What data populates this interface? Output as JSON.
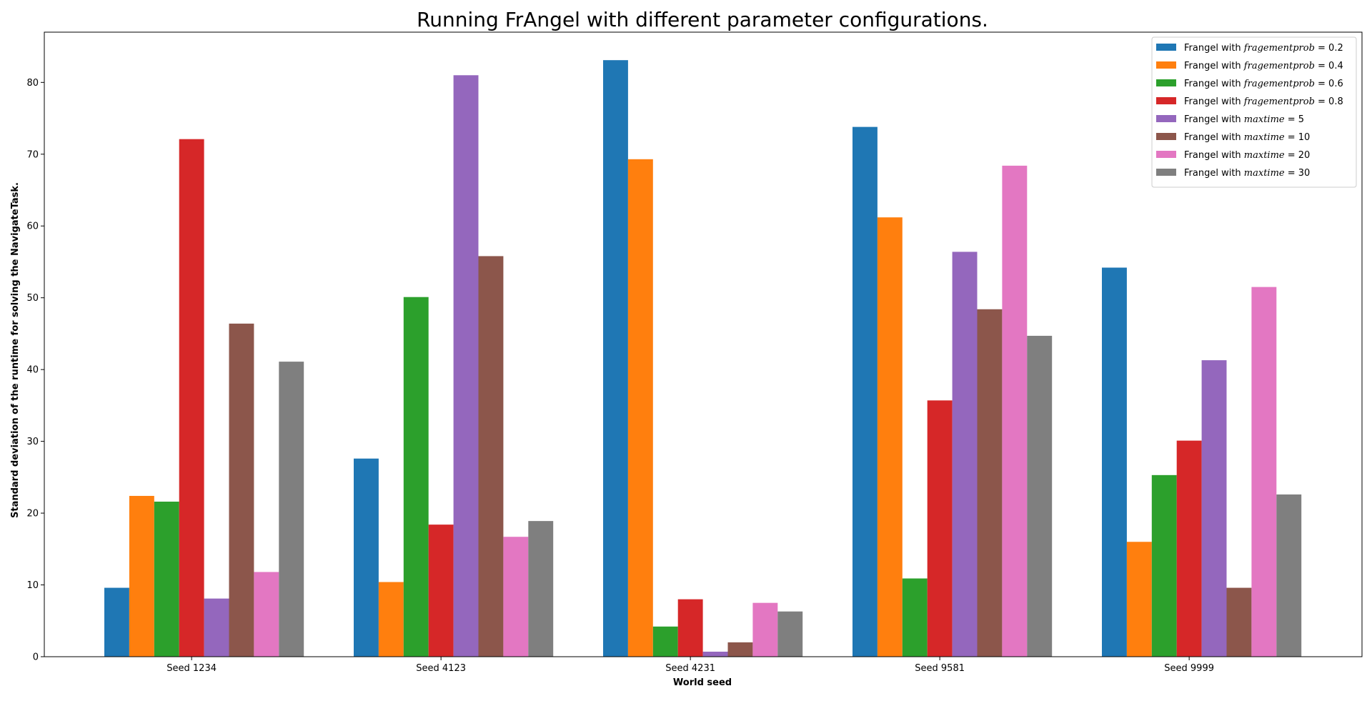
{
  "chart_data": {
    "type": "bar",
    "title": "Running FrAngel with different parameter configurations.",
    "xlabel": "World seed",
    "ylabel": "Standard deviation of the runtime for solving the NavigateTask.",
    "categories": [
      "Seed 1234",
      "Seed 4123",
      "Seed 4231",
      "Seed 9581",
      "Seed 9999"
    ],
    "ylim": [
      0,
      87
    ],
    "yticks": [
      "0",
      "10",
      "20",
      "30",
      "40",
      "50",
      "60",
      "70",
      "80"
    ],
    "grid": false,
    "legend_position": "top-right",
    "series": [
      {
        "name": "Frangel with fragementprob = 0.2",
        "prefix": "Frangel with ",
        "param": "fragementprob",
        "value_text": "0.2",
        "color": "#1f77b4",
        "values": [
          9.6,
          27.6,
          83.1,
          73.8,
          54.2
        ]
      },
      {
        "name": "Frangel with fragementprob = 0.4",
        "prefix": "Frangel with ",
        "param": "fragementprob",
        "value_text": "0.4",
        "color": "#ff7f0e",
        "values": [
          22.4,
          10.4,
          69.3,
          61.2,
          16.0
        ]
      },
      {
        "name": "Frangel with fragementprob = 0.6",
        "prefix": "Frangel with ",
        "param": "fragementprob",
        "value_text": "0.6",
        "color": "#2ca02c",
        "values": [
          21.6,
          50.1,
          4.2,
          10.9,
          25.3
        ]
      },
      {
        "name": "Frangel with fragementprob = 0.8",
        "prefix": "Frangel with ",
        "param": "fragementprob",
        "value_text": "0.8",
        "color": "#d62728",
        "values": [
          72.1,
          18.4,
          8.0,
          35.7,
          30.1
        ]
      },
      {
        "name": "Frangel with maxtime = 5",
        "prefix": "Frangel with ",
        "param": "maxtime",
        "value_text": "5",
        "color": "#9467bd",
        "values": [
          8.1,
          81.0,
          0.7,
          56.4,
          41.3
        ]
      },
      {
        "name": "Frangel with maxtime = 10",
        "prefix": "Frangel with ",
        "param": "maxtime",
        "value_text": "10",
        "color": "#8c564b",
        "values": [
          46.4,
          55.8,
          2.0,
          48.4,
          9.6
        ]
      },
      {
        "name": "Frangel with maxtime = 20",
        "prefix": "Frangel with ",
        "param": "maxtime",
        "value_text": "20",
        "color": "#e377c2",
        "values": [
          11.8,
          16.7,
          7.5,
          68.4,
          51.5
        ]
      },
      {
        "name": "Frangel with maxtime = 30",
        "prefix": "Frangel with ",
        "param": "maxtime",
        "value_text": "30",
        "color": "#7f7f7f",
        "values": [
          41.1,
          18.9,
          6.3,
          44.7,
          22.6
        ]
      }
    ]
  }
}
